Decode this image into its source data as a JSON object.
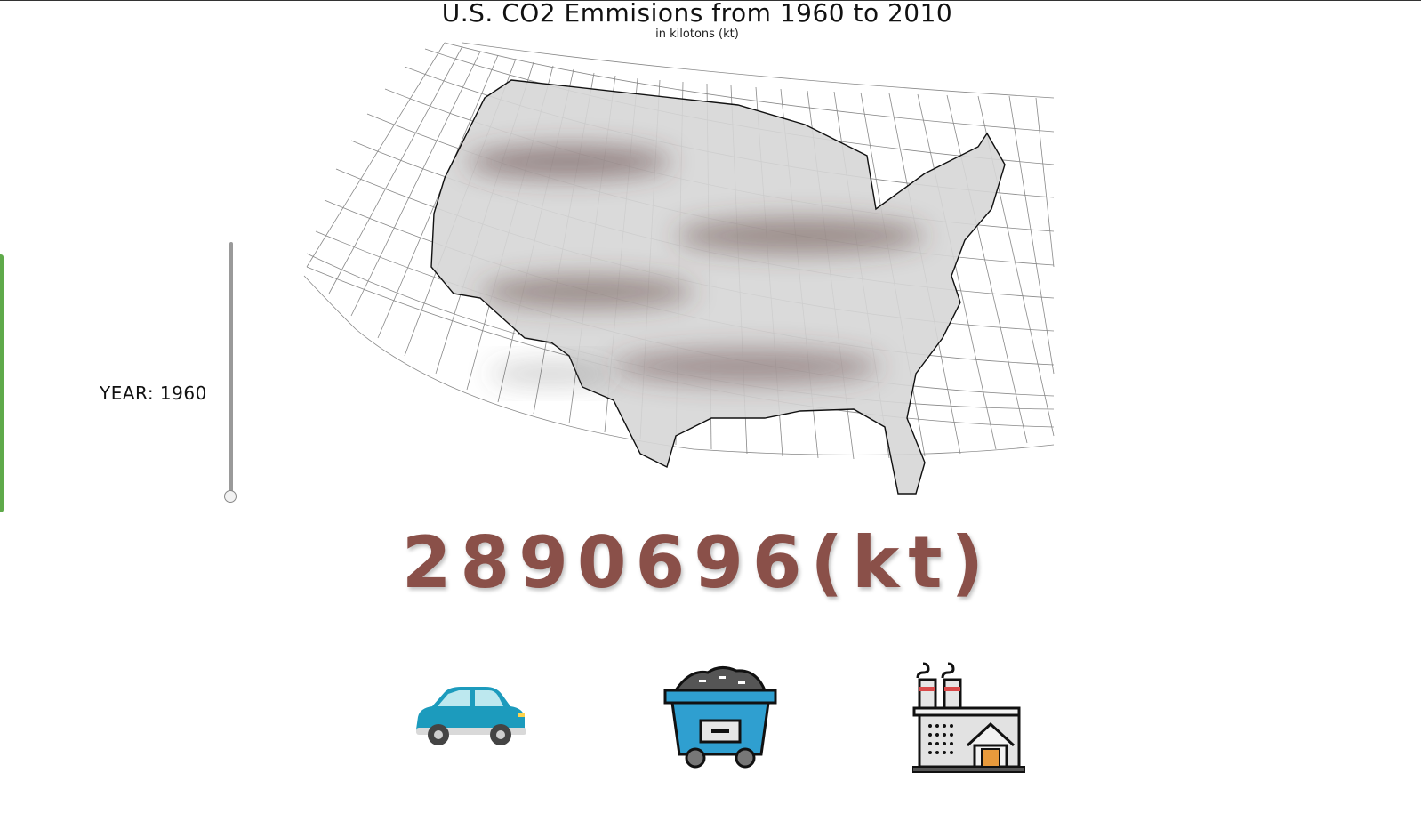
{
  "header": {
    "title": "U.S. CO2 Emmisions from 1960 to 2010",
    "subtitle": "in kilotons (kt)"
  },
  "year_control": {
    "label": "YEAR: 1960",
    "value": 1960,
    "min": 1960,
    "max": 2010
  },
  "emission": {
    "display": "2890696(kt)"
  },
  "icons": [
    {
      "name": "car-icon",
      "color": "#1c9bbd"
    },
    {
      "name": "coal-cart-icon",
      "color": "#2f9fd0"
    },
    {
      "name": "factory-icon",
      "color": "#e2e2e2"
    }
  ],
  "colors": {
    "value_text": "#8a5049",
    "map_fill": "#d6d6d6",
    "hotspot": "#5a3c3a"
  }
}
